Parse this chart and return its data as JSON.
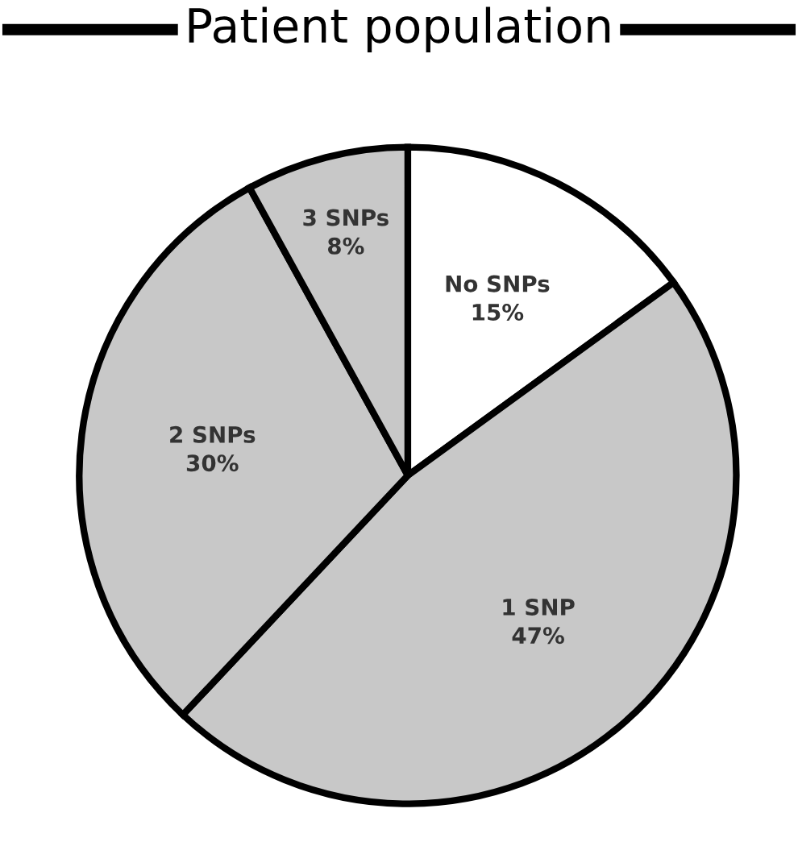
{
  "chart_data": {
    "type": "pie",
    "title": "Patient population",
    "categories": [
      "No SNPs",
      "1 SNP",
      "2 SNPs",
      "3 SNPs"
    ],
    "values": [
      15,
      47,
      30,
      8
    ],
    "value_labels": [
      "15%",
      "47%",
      "30%",
      "8%"
    ],
    "colors": [
      "#ffffff",
      "#c8c8c8",
      "#c8c8c8",
      "#c8c8c8"
    ]
  }
}
